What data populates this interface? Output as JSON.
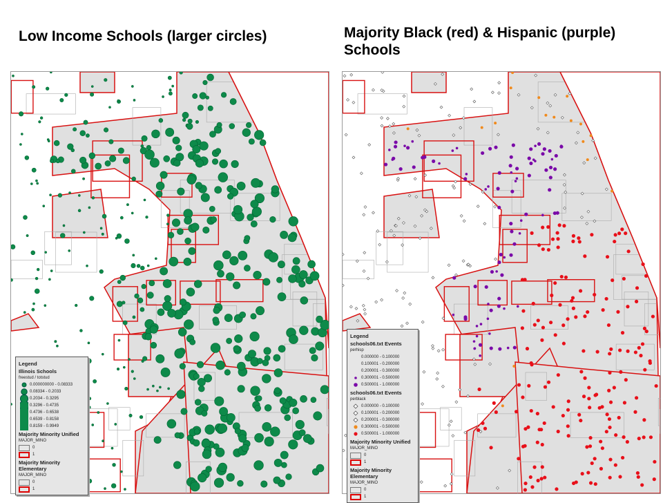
{
  "titles": {
    "left": "Low Income Schools (larger circles)",
    "right": "Majority Black (red) & Hispanic (purple) Schools"
  },
  "colors": {
    "green": "#0e8a4a",
    "red": "#e8101a",
    "purple": "#7a0aa8",
    "orange": "#f08a1c",
    "district_fill": "#e0e0e0",
    "district_border": "#d81010"
  },
  "legend_left": {
    "title": "Legend",
    "layer": "Illinois Schools",
    "field": "freestud / totstud",
    "classes": [
      "0.000000000 - 0.08333",
      "0.08334 - 0.2033",
      "0.2034 - 0.3295",
      "0.3296 - 0.4735",
      "0.4736 - 0.6538",
      "0.6539 - 0.8158",
      "0.8159 - 0.9949"
    ],
    "unified": "Majority Minority Unified",
    "elementary": "Majority Minority Elementary",
    "field2": "MAJOR_MINO",
    "v0": "0",
    "v1": "1"
  },
  "legend_right": {
    "title": "Legend",
    "layer1": "schools06.txt Events",
    "field_hisp": "perhisp",
    "layer2": "schools06.txt Events",
    "field_black": "perblack",
    "classes": [
      "0.000000 - 0.100000",
      "0.100001 - 0.200000",
      "0.200001 - 0.300000",
      "0.300001 - 0.500000",
      "0.500001 - 1.000000"
    ],
    "unified": "Majority Minority Unified",
    "elementary": "Majority Minority Elementary",
    "field2": "MAJOR_MINO",
    "v0": "0",
    "v1": "1"
  }
}
